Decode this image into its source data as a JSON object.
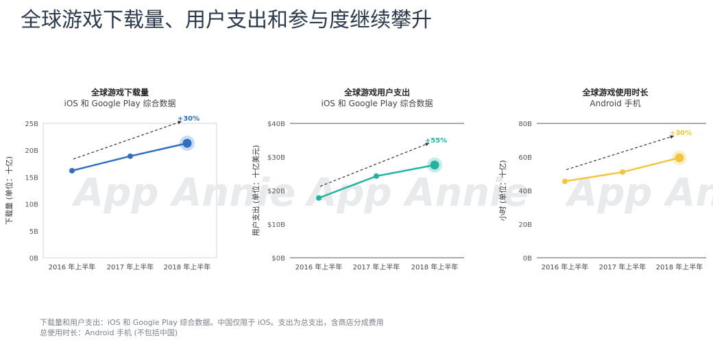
{
  "page": {
    "title": "全球游戏下载量、用户支出和参与度继续攀升",
    "footnote_1": "下载量和用户支出：iOS 和 Google Play 综合数据。中国仅限于 iOS。支出为总支出，含商店分成费用",
    "footnote_2": "总使用时长：Android 手机 (不包括中国)"
  },
  "watermark": "App Annie",
  "chart_data": [
    {
      "type": "line",
      "title": "全球游戏下载量",
      "subtitle": "iOS 和 Google Play 综合数据",
      "ylabel": "下载量 (单位：十亿)",
      "categories": [
        "2016 年上半年",
        "2017 年上半年",
        "2018 年上半年"
      ],
      "values": [
        16.2,
        18.9,
        21.3
      ],
      "ylim": [
        0,
        25
      ],
      "yticks": [
        0,
        5,
        10,
        15,
        20,
        25
      ],
      "ytick_labels": [
        "0B",
        "5B",
        "10B",
        "15B",
        "20B",
        "25B"
      ],
      "growth_label": "+30%",
      "color": "#2f6fc0",
      "frame": "box"
    },
    {
      "type": "line",
      "title": "全球游戏用户支出",
      "subtitle": "iOS 和 Google Play 综合数据",
      "ylabel": "用户支出 (单位：十亿美元)",
      "categories": [
        "2016 年上半年",
        "2017 年上半年",
        "2018 年上半年"
      ],
      "values": [
        17.8,
        24.3,
        27.6
      ],
      "ylim": [
        0,
        40
      ],
      "yticks": [
        0,
        10,
        20,
        30,
        40
      ],
      "ytick_labels": [
        "$0B",
        "$10B",
        "$20B",
        "$30B",
        "$40B"
      ],
      "growth_label": "+55%",
      "color": "#1fb5a1",
      "frame": "lines"
    },
    {
      "type": "line",
      "title": "全球游戏使用时长",
      "subtitle": "Android 手机",
      "ylabel": "小时 (单位：十亿)",
      "categories": [
        "2016 年上半年",
        "2017 年上半年",
        "2018 年上半年"
      ],
      "values": [
        45.5,
        51,
        59.5
      ],
      "ylim": [
        0,
        80
      ],
      "yticks": [
        0,
        20,
        40,
        60,
        80
      ],
      "ytick_labels": [
        "0B",
        "20B",
        "40B",
        "60B",
        "80B"
      ],
      "growth_label": "+30%",
      "color": "#f2c53d",
      "frame": "lines"
    }
  ]
}
